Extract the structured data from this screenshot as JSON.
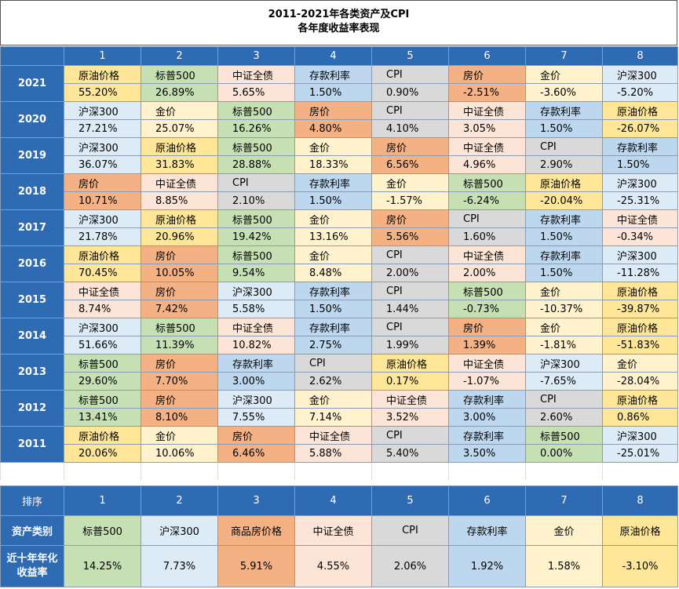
{
  "title": {
    "line1": "2011-2021年各类资产及CPI",
    "line2": "各年度收益率表现"
  },
  "columns": [
    "1",
    "2",
    "3",
    "4",
    "5",
    "6",
    "7",
    "8"
  ],
  "colors": {
    "header": "#2e6bb3",
    "oil": "#ffe699",
    "spx": "#c6e0b4",
    "csi": "#fce4d6",
    "dep": "#bdd7ee",
    "cpi": "#d9d9d9",
    "house": "#f4b183",
    "gold": "#fff2cc",
    "hs": "#ddebf7"
  },
  "years": [
    {
      "year": "2021",
      "cells": [
        {
          "name": "原油价格",
          "value": "55.20%",
          "c": "oil"
        },
        {
          "name": "标普500",
          "value": "26.89%",
          "c": "spx"
        },
        {
          "name": "中证全债",
          "value": "5.65%",
          "c": "csi"
        },
        {
          "name": "存款利率",
          "value": "1.50%",
          "c": "dep"
        },
        {
          "name": "CPI",
          "value": "0.90%",
          "c": "cpi"
        },
        {
          "name": "房价",
          "value": "-2.51%",
          "c": "house"
        },
        {
          "name": "金价",
          "value": "-3.60%",
          "c": "gold"
        },
        {
          "name": "沪深300",
          "value": "-5.20%",
          "c": "hs"
        }
      ]
    },
    {
      "year": "2020",
      "cells": [
        {
          "name": "沪深300",
          "value": "27.21%",
          "c": "hs"
        },
        {
          "name": "金价",
          "value": "25.07%",
          "c": "gold"
        },
        {
          "name": "标普500",
          "value": "16.26%",
          "c": "spx"
        },
        {
          "name": "房价",
          "value": "4.80%",
          "c": "house"
        },
        {
          "name": "CPI",
          "value": "4.10%",
          "c": "cpi"
        },
        {
          "name": "中证全债",
          "value": "3.05%",
          "c": "csi"
        },
        {
          "name": "存款利率",
          "value": "1.50%",
          "c": "dep"
        },
        {
          "name": "原油价格",
          "value": "-26.07%",
          "c": "oil"
        }
      ]
    },
    {
      "year": "2019",
      "cells": [
        {
          "name": "沪深300",
          "value": "36.07%",
          "c": "hs"
        },
        {
          "name": "原油价格",
          "value": "31.83%",
          "c": "oil"
        },
        {
          "name": "标普500",
          "value": "28.88%",
          "c": "spx"
        },
        {
          "name": "金价",
          "value": "18.33%",
          "c": "gold"
        },
        {
          "name": "房价",
          "value": "6.56%",
          "c": "house"
        },
        {
          "name": "中证全债",
          "value": "4.96%",
          "c": "csi"
        },
        {
          "name": "CPI",
          "value": "2.90%",
          "c": "cpi"
        },
        {
          "name": "存款利率",
          "value": "1.50%",
          "c": "dep"
        }
      ]
    },
    {
      "year": "2018",
      "cells": [
        {
          "name": "房价",
          "value": "10.71%",
          "c": "house"
        },
        {
          "name": "中证全债",
          "value": "8.85%",
          "c": "csi"
        },
        {
          "name": "CPI",
          "value": "2.10%",
          "c": "cpi"
        },
        {
          "name": "存款利率",
          "value": "1.50%",
          "c": "dep"
        },
        {
          "name": "金价",
          "value": "-1.57%",
          "c": "gold"
        },
        {
          "name": "标普500",
          "value": "-6.24%",
          "c": "spx"
        },
        {
          "name": "原油价格",
          "value": "-20.04%",
          "c": "oil"
        },
        {
          "name": "沪深300",
          "value": "-25.31%",
          "c": "hs"
        }
      ]
    },
    {
      "year": "2017",
      "cells": [
        {
          "name": "沪深300",
          "value": "21.78%",
          "c": "hs"
        },
        {
          "name": "原油价格",
          "value": "20.96%",
          "c": "oil"
        },
        {
          "name": "标普500",
          "value": "19.42%",
          "c": "spx"
        },
        {
          "name": "金价",
          "value": "13.16%",
          "c": "gold"
        },
        {
          "name": "房价",
          "value": "5.56%",
          "c": "house"
        },
        {
          "name": "CPI",
          "value": "1.60%",
          "c": "cpi"
        },
        {
          "name": "存款利率",
          "value": "1.50%",
          "c": "dep"
        },
        {
          "name": "中证全债",
          "value": "-0.34%",
          "c": "csi"
        }
      ]
    },
    {
      "year": "2016",
      "cells": [
        {
          "name": "原油价格",
          "value": "70.45%",
          "c": "oil"
        },
        {
          "name": "房价",
          "value": "10.05%",
          "c": "house"
        },
        {
          "name": "标普500",
          "value": "9.54%",
          "c": "spx"
        },
        {
          "name": "金价",
          "value": "8.48%",
          "c": "gold"
        },
        {
          "name": "CPI",
          "value": "2.00%",
          "c": "cpi"
        },
        {
          "name": "中证全债",
          "value": "2.00%",
          "c": "csi"
        },
        {
          "name": "存款利率",
          "value": "1.50%",
          "c": "dep"
        },
        {
          "name": "沪深300",
          "value": "-11.28%",
          "c": "hs"
        }
      ]
    },
    {
      "year": "2015",
      "cells": [
        {
          "name": "中证全债",
          "value": "8.74%",
          "c": "csi"
        },
        {
          "name": "房价",
          "value": "7.42%",
          "c": "house"
        },
        {
          "name": "沪深300",
          "value": "5.58%",
          "c": "hs"
        },
        {
          "name": "存款利率",
          "value": "1.50%",
          "c": "dep"
        },
        {
          "name": "CPI",
          "value": "1.44%",
          "c": "cpi"
        },
        {
          "name": "标普500",
          "value": "-0.73%",
          "c": "spx"
        },
        {
          "name": "金价",
          "value": "-10.37%",
          "c": "gold"
        },
        {
          "name": "原油价格",
          "value": "-39.87%",
          "c": "oil"
        }
      ]
    },
    {
      "year": "2014",
      "cells": [
        {
          "name": "沪深300",
          "value": "51.66%",
          "c": "hs"
        },
        {
          "name": "标普500",
          "value": "11.39%",
          "c": "spx"
        },
        {
          "name": "中证全债",
          "value": "10.82%",
          "c": "csi"
        },
        {
          "name": "存款利率",
          "value": "2.75%",
          "c": "dep"
        },
        {
          "name": "CPI",
          "value": "1.99%",
          "c": "cpi"
        },
        {
          "name": "房价",
          "value": "1.39%",
          "c": "house"
        },
        {
          "name": "金价",
          "value": "-1.81%",
          "c": "gold"
        },
        {
          "name": "原油价格",
          "value": "-51.83%",
          "c": "oil"
        }
      ]
    },
    {
      "year": "2013",
      "cells": [
        {
          "name": "标普500",
          "value": "29.60%",
          "c": "spx"
        },
        {
          "name": "房价",
          "value": "7.70%",
          "c": "house"
        },
        {
          "name": "存款利率",
          "value": "3.00%",
          "c": "dep"
        },
        {
          "name": "CPI",
          "value": "2.62%",
          "c": "cpi"
        },
        {
          "name": "原油价格",
          "value": "0.17%",
          "c": "oil"
        },
        {
          "name": "中证全债",
          "value": "-1.07%",
          "c": "csi"
        },
        {
          "name": "沪深300",
          "value": "-7.65%",
          "c": "hs"
        },
        {
          "name": "金价",
          "value": "-28.04%",
          "c": "gold"
        }
      ]
    },
    {
      "year": "2012",
      "cells": [
        {
          "name": "标普500",
          "value": "13.41%",
          "c": "spx"
        },
        {
          "name": "房价",
          "value": "8.10%",
          "c": "house"
        },
        {
          "name": "沪深300",
          "value": "7.55%",
          "c": "hs"
        },
        {
          "name": "金价",
          "value": "7.14%",
          "c": "gold"
        },
        {
          "name": "中证全债",
          "value": "3.52%",
          "c": "csi"
        },
        {
          "name": "存款利率",
          "value": "3.00%",
          "c": "dep"
        },
        {
          "name": "CPI",
          "value": "2.60%",
          "c": "cpi"
        },
        {
          "name": "原油价格",
          "value": "0.86%",
          "c": "oil"
        }
      ]
    },
    {
      "year": "2011",
      "cells": [
        {
          "name": "原油价格",
          "value": "20.06%",
          "c": "oil"
        },
        {
          "name": "金价",
          "value": "10.06%",
          "c": "gold"
        },
        {
          "name": "房价",
          "value": "6.46%",
          "c": "house"
        },
        {
          "name": "中证全债",
          "value": "5.88%",
          "c": "csi"
        },
        {
          "name": "CPI",
          "value": "5.40%",
          "c": "cpi"
        },
        {
          "name": "存款利率",
          "value": "3.50%",
          "c": "dep"
        },
        {
          "name": "标普500",
          "value": "0.00%",
          "c": "spx"
        },
        {
          "name": "沪深300",
          "value": "-25.01%",
          "c": "hs"
        }
      ]
    }
  ],
  "summary": {
    "rank_label": "排序",
    "asset_label": "资产类别",
    "return_label_1": "近十年年化",
    "return_label_2": "收益率",
    "ranks": [
      "1",
      "2",
      "3",
      "4",
      "5",
      "6",
      "7",
      "8"
    ],
    "assets": [
      {
        "name": "标普500",
        "value": "14.25%",
        "c": "spx"
      },
      {
        "name": "沪深300",
        "value": "7.73%",
        "c": "hs"
      },
      {
        "name": "商品房价格",
        "value": "5.91%",
        "c": "house"
      },
      {
        "name": "中证全债",
        "value": "4.55%",
        "c": "csi"
      },
      {
        "name": "CPI",
        "value": "2.06%",
        "c": "cpi"
      },
      {
        "name": "存款利率",
        "value": "1.92%",
        "c": "dep"
      },
      {
        "name": "金价",
        "value": "1.58%",
        "c": "gold"
      },
      {
        "name": "原油价格",
        "value": "-3.10%",
        "c": "oil"
      }
    ]
  }
}
